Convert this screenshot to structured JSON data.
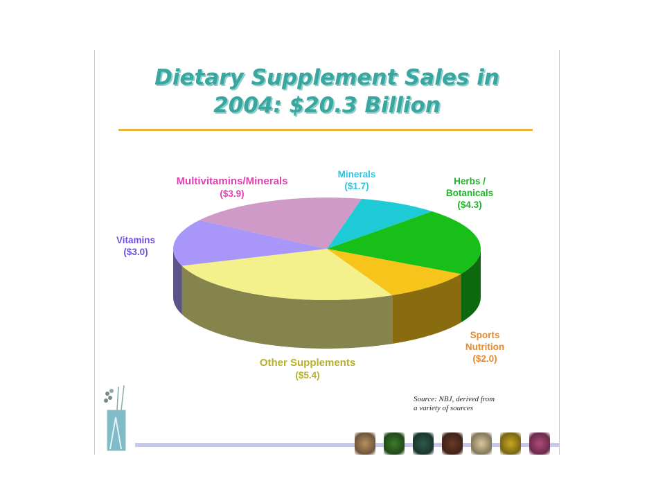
{
  "title": {
    "line1": "Dietary Supplement Sales in",
    "line2": "2004: $20.3 Billion"
  },
  "source": {
    "line1": "Source: NBJ, derived from",
    "line2": "a variety of sources"
  },
  "chart_data": {
    "type": "pie",
    "title": "Dietary Supplement Sales in 2004: $20.3 Billion",
    "units": "$ billions",
    "slices": [
      {
        "label": "Minerals",
        "value": 1.7,
        "value_label": "($1.7)",
        "color": "#1ecad6"
      },
      {
        "label": "Herbs / Botanicals",
        "value": 4.3,
        "value_label": "($4.3)",
        "color": "#18bf18"
      },
      {
        "label": "Sports Nutrition",
        "value": 2.0,
        "value_label": "($2.0)",
        "color": "#f7c41c"
      },
      {
        "label": "Other Supplements",
        "value": 5.4,
        "value_label": "($5.4)",
        "color": "#f4f08c"
      },
      {
        "label": "Vitamins",
        "value": 3.0,
        "value_label": "($3.0)",
        "color": "#a896f8"
      },
      {
        "label": "Multivitamins/Minerals",
        "value": 3.9,
        "value_label": "($3.9)",
        "color": "#d09ac8"
      }
    ],
    "label_colors": {
      "Minerals": "#29c6e4",
      "Herbs / Botanicals": "#22b32a",
      "Sports Nutrition": "#e8892e",
      "Other Supplements": "#b6b02a",
      "Vitamins": "#6f52d8",
      "Multivitamins/Minerals": "#e040b4"
    }
  },
  "labels": {
    "minerals": {
      "name": "Minerals",
      "value": "($1.7)"
    },
    "herbs": {
      "name1": "Herbs /",
      "name2": "Botanicals",
      "value": "($4.3)"
    },
    "sports": {
      "name1": "Sports",
      "name2": "Nutrition",
      "value": "($2.0)"
    },
    "other": {
      "name": "Other Supplements",
      "value": "($5.4)"
    },
    "vitamins": {
      "name": "Vitamins",
      "value": "($3.0)"
    },
    "multi": {
      "name": "Multivitamins/Minerals",
      "value": "($3.9)"
    }
  },
  "decor": {
    "thumb_colors": [
      "#b89060",
      "#3a7a2a",
      "#2e5a4a",
      "#6a3a28",
      "#d8c89a",
      "#c8a820",
      "#b04a7a"
    ]
  }
}
